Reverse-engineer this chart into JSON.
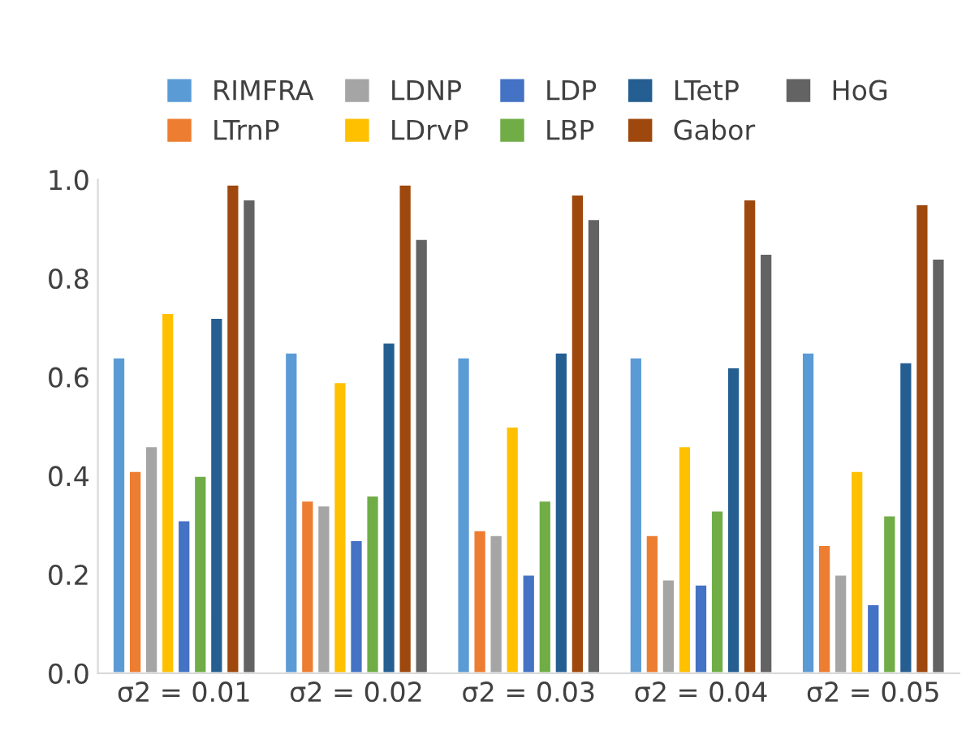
{
  "chart_data": {
    "type": "bar",
    "categories": [
      "σ2 = 0.01",
      "σ2 = 0.02",
      "σ2 = 0.03",
      "σ2 = 0.04",
      "σ2 = 0.05"
    ],
    "series": [
      {
        "name": "RIMFRA",
        "color": "#5b9bd5",
        "values": [
          0.64,
          0.65,
          0.64,
          0.64,
          0.65
        ]
      },
      {
        "name": "LTrnP",
        "color": "#ed7d31",
        "values": [
          0.41,
          0.35,
          0.29,
          0.28,
          0.26
        ]
      },
      {
        "name": "LDNP",
        "color": "#a5a5a5",
        "values": [
          0.46,
          0.34,
          0.28,
          0.19,
          0.2
        ]
      },
      {
        "name": "LDrvP",
        "color": "#ffc000",
        "values": [
          0.73,
          0.59,
          0.5,
          0.46,
          0.41
        ]
      },
      {
        "name": "LDP",
        "color": "#4472c4",
        "values": [
          0.31,
          0.27,
          0.2,
          0.18,
          0.14
        ]
      },
      {
        "name": "LBP",
        "color": "#70ad47",
        "values": [
          0.4,
          0.36,
          0.35,
          0.33,
          0.32
        ]
      },
      {
        "name": "LTetP",
        "color": "#255e91",
        "values": [
          0.72,
          0.67,
          0.65,
          0.62,
          0.63
        ]
      },
      {
        "name": "Gabor",
        "color": "#9e480e",
        "values": [
          0.99,
          0.99,
          0.97,
          0.96,
          0.95
        ]
      },
      {
        "name": "HoG",
        "color": "#636363",
        "values": [
          0.96,
          0.88,
          0.92,
          0.85,
          0.84
        ]
      }
    ],
    "ylim": [
      0,
      1.0
    ],
    "yticks": [
      {
        "value": 0,
        "label": "0.0"
      },
      {
        "value": 0.2,
        "label": "0.2"
      },
      {
        "value": 0.4,
        "label": "0.4"
      },
      {
        "value": 0.6,
        "label": "0.6"
      },
      {
        "value": 0.8,
        "label": "0.8"
      },
      {
        "value": 1.0,
        "label": "1.0"
      }
    ],
    "grid": false,
    "legend": "top"
  }
}
